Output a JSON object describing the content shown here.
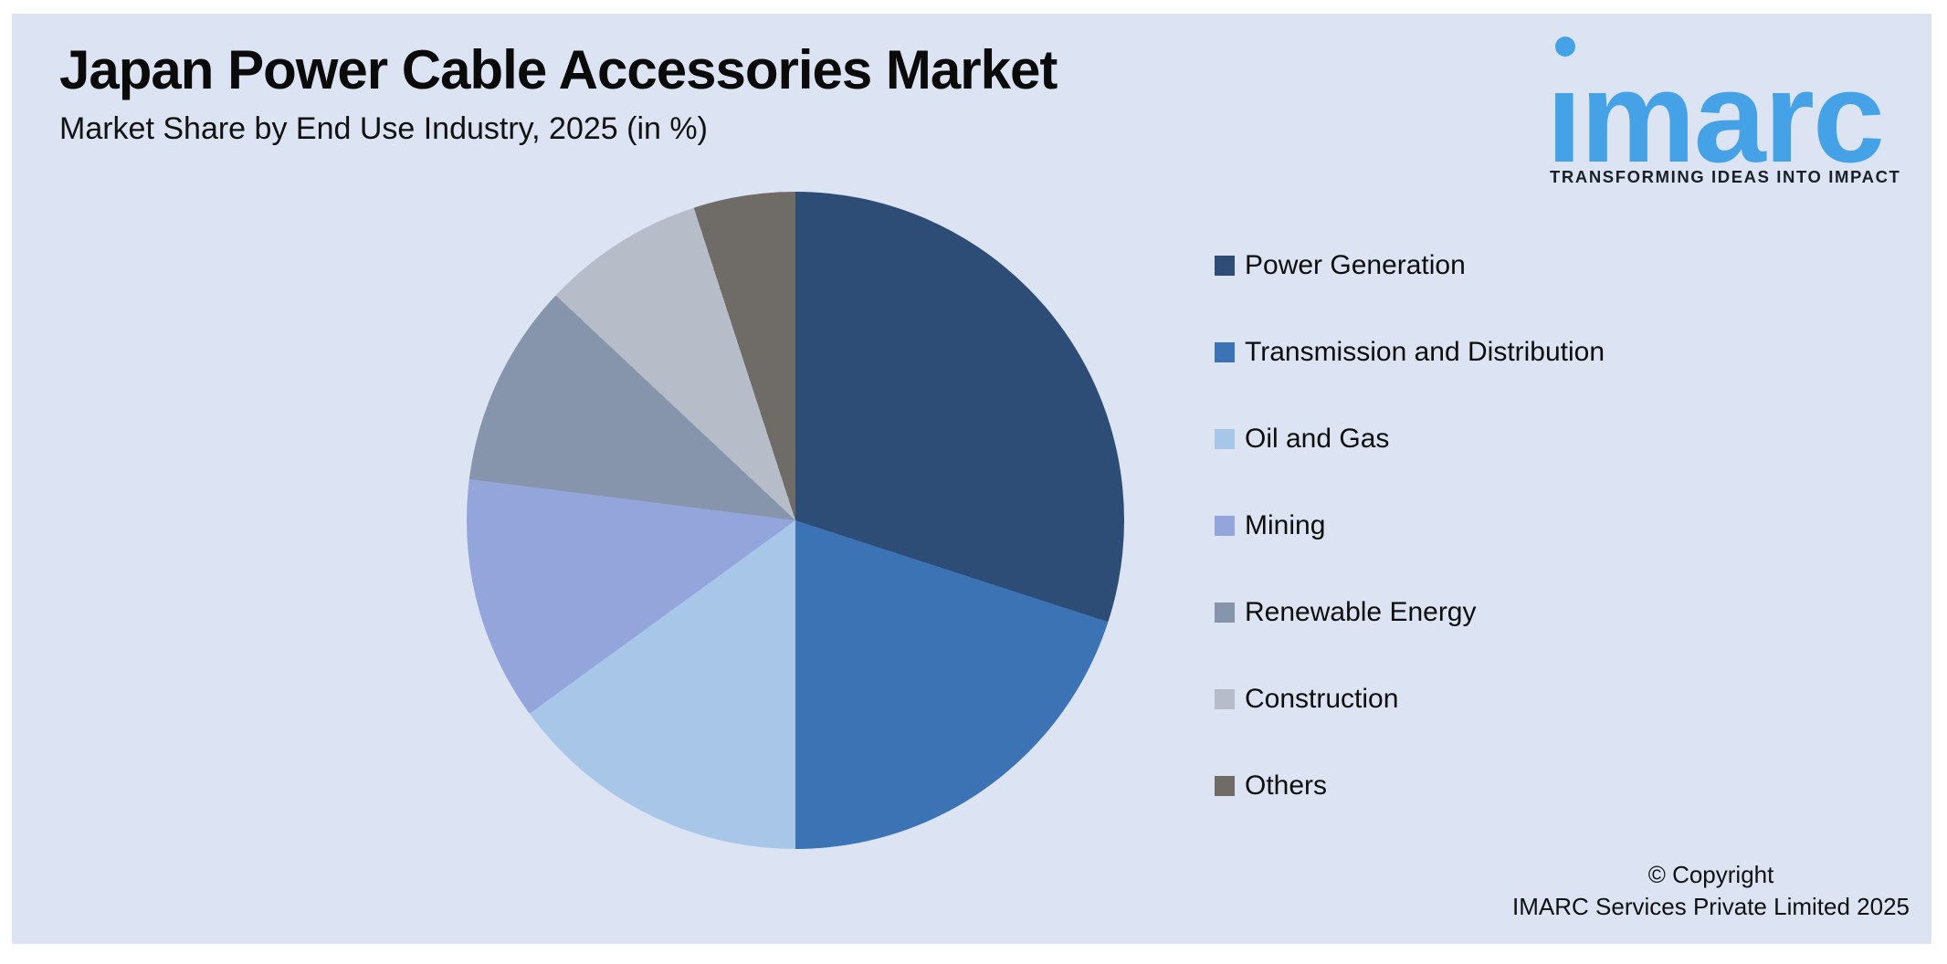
{
  "header": {
    "title": "Japan Power Cable Accessories Market",
    "subtitle": "Market Share by End Use Industry, 2025 (in %)"
  },
  "logo": {
    "wordmark": "ımarc",
    "tagline": "TRANSFORMING IDEAS INTO IMPACT",
    "brand_color": "#45a2e6",
    "tagline_color": "#1a2028"
  },
  "chart_data": {
    "type": "pie",
    "title": "Market Share by End Use Industry, 2025 (in %)",
    "unit": "%",
    "start_angle_deg": 0,
    "direction": "clockwise",
    "legend_position": "right",
    "labels": [
      "Power Generation",
      "Transmission and Distribution",
      "Oil and Gas",
      "Mining",
      "Renewable Energy",
      "Construction",
      "Others"
    ],
    "values": [
      30,
      20,
      15,
      12,
      10,
      8,
      5
    ],
    "colors": [
      "#2e4d76",
      "#3b73b4",
      "#a8c6e8",
      "#93a5da",
      "#8694ac",
      "#b6bdc8",
      "#6f6b66"
    ]
  },
  "footer": {
    "copyright_line1": "© Copyright",
    "copyright_line2": "IMARC Services Private Limited 2025"
  },
  "canvas": {
    "page_bg": "#ffffff",
    "panel_bg": "#dce3f3"
  }
}
